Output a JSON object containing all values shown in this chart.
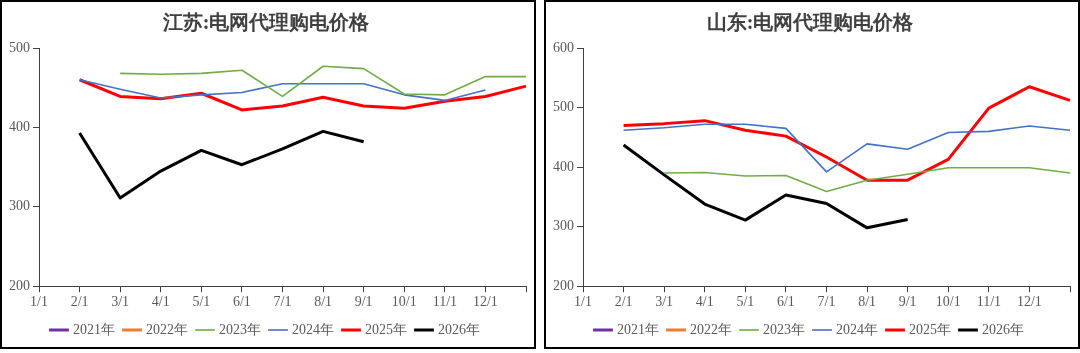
{
  "chart_data": [
    {
      "type": "line",
      "title": "江苏:电网代理购电价格",
      "categories": [
        "1/1",
        "2/1",
        "3/1",
        "4/1",
        "5/1",
        "6/1",
        "7/1",
        "8/1",
        "9/1",
        "10/1",
        "11/1",
        "12/1",
        null
      ],
      "ylim": [
        200,
        500
      ],
      "yticks": [
        200,
        300,
        400,
        500
      ],
      "grid": false,
      "legend": "bottom",
      "marker": "none",
      "series": [
        {
          "name": "2021年",
          "color": "#7030a0",
          "values": [
            null,
            null,
            null,
            null,
            null,
            null,
            null,
            null,
            null,
            null,
            null,
            null,
            null
          ]
        },
        {
          "name": "2022年",
          "color": "#ed7d31",
          "values": [
            null,
            null,
            null,
            null,
            null,
            null,
            null,
            null,
            null,
            null,
            null,
            null,
            null
          ]
        },
        {
          "name": "2023年",
          "color": "#70ad47",
          "values": [
            null,
            null,
            468,
            467,
            468,
            472,
            439,
            477,
            474,
            442,
            441,
            464,
            464
          ]
        },
        {
          "name": "2024年",
          "color": "#4472c4",
          "values": [
            null,
            460,
            448,
            437,
            441,
            444,
            455,
            455,
            455,
            441,
            434,
            447,
            null
          ]
        },
        {
          "name": "2025年",
          "color": "#ff0000",
          "values": [
            null,
            460,
            439,
            436,
            443,
            422,
            427,
            438,
            427,
            424,
            433,
            439,
            452
          ]
        },
        {
          "name": "2026年",
          "color": "#000000",
          "values": [
            null,
            393,
            311,
            345,
            371,
            353,
            373,
            395,
            382,
            null,
            null,
            null,
            null
          ]
        }
      ]
    },
    {
      "type": "line",
      "title": "山东:电网代理购电价格",
      "categories": [
        "1/1",
        "2/1",
        "3/1",
        "4/1",
        "5/1",
        "6/1",
        "7/1",
        "8/1",
        "9/1",
        "10/1",
        "11/1",
        "12/1",
        null
      ],
      "ylim": [
        200,
        600
      ],
      "yticks": [
        200,
        300,
        400,
        500,
        600
      ],
      "grid": false,
      "legend": "bottom",
      "marker": "none",
      "series": [
        {
          "name": "2021年",
          "color": "#7030a0",
          "values": [
            null,
            null,
            null,
            null,
            null,
            null,
            null,
            null,
            null,
            null,
            null,
            null,
            null
          ]
        },
        {
          "name": "2022年",
          "color": "#ed7d31",
          "values": [
            null,
            null,
            null,
            null,
            null,
            null,
            null,
            null,
            null,
            null,
            null,
            null,
            null
          ]
        },
        {
          "name": "2023年",
          "color": "#70ad47",
          "values": [
            null,
            null,
            390,
            391,
            385,
            386,
            359,
            378,
            388,
            399,
            399,
            399,
            390
          ]
        },
        {
          "name": "2024年",
          "color": "#4472c4",
          "values": [
            null,
            462,
            466,
            472,
            472,
            465,
            392,
            439,
            430,
            458,
            460,
            469,
            462
          ]
        },
        {
          "name": "2025年",
          "color": "#ff0000",
          "values": [
            null,
            470,
            473,
            478,
            462,
            452,
            417,
            378,
            378,
            413,
            499,
            535,
            512
          ]
        },
        {
          "name": "2026年",
          "color": "#000000",
          "values": [
            null,
            437,
            387,
            338,
            311,
            353,
            339,
            298,
            312,
            null,
            null,
            null,
            null
          ]
        }
      ]
    }
  ]
}
